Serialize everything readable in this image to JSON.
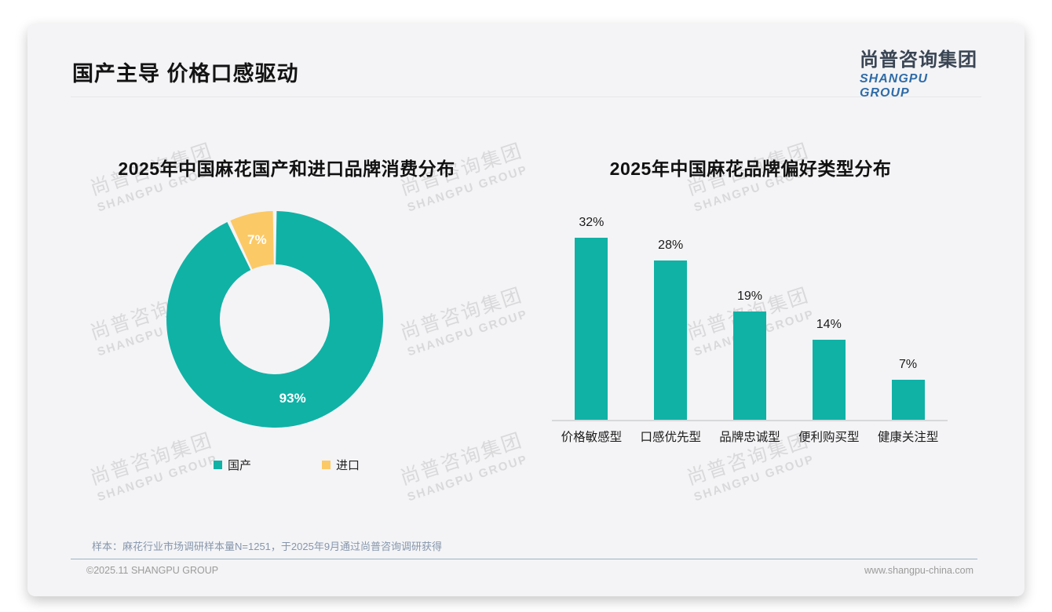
{
  "slide": {
    "title": "国产主导 价格口感驱动",
    "logo": {
      "cn": "尚普咨询集团",
      "en": "SHANGPU GROUP"
    },
    "watermark": {
      "cn": "尚普咨询集团",
      "en": "SHANGPU GROUP"
    },
    "footnote": "样本：麻花行业市场调研样本量N=1251，于2025年9月通过尚普咨询调研获得",
    "footer": {
      "copyright": "©2025.11 SHANGPU GROUP",
      "website": "www.shangpu-china.com"
    }
  },
  "colors": {
    "teal": "#10B2A6",
    "yellow": "#FBC966",
    "axis": "#d8d9db"
  },
  "chart_data": [
    {
      "type": "pie",
      "donut": true,
      "title": "2025年中国麻花国产和进口品牌消费分布",
      "labels": [
        "国产",
        "进口"
      ],
      "values": [
        93,
        7
      ],
      "value_labels": [
        "93%",
        "7%"
      ],
      "colors": [
        "#10B2A6",
        "#FBC966"
      ],
      "legend_position": "bottom",
      "start_angle_deg": 0,
      "direction": "clockwise"
    },
    {
      "type": "bar",
      "title": "2025年中国麻花品牌偏好类型分布",
      "categories": [
        "价格敏感型",
        "口感优先型",
        "品牌忠诚型",
        "便利购买型",
        "健康关注型"
      ],
      "values": [
        32,
        28,
        19,
        14,
        7
      ],
      "value_labels": [
        "32%",
        "28%",
        "19%",
        "14%",
        "7%"
      ],
      "bar_color": "#10B2A6",
      "xlabel": "",
      "ylabel": "",
      "ylim": [
        0,
        35
      ],
      "grid": false,
      "legend_position": "none"
    }
  ]
}
